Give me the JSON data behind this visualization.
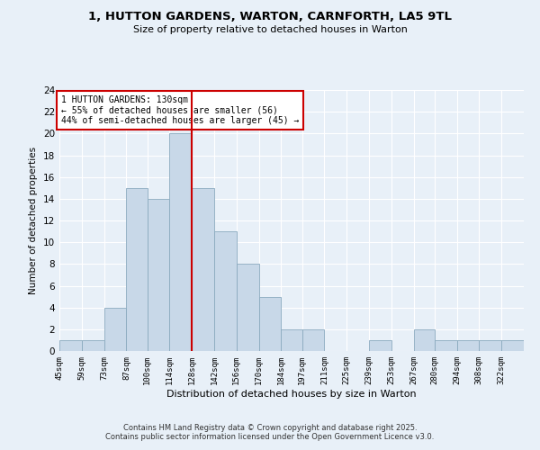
{
  "title_line1": "1, HUTTON GARDENS, WARTON, CARNFORTH, LA5 9TL",
  "title_line2": "Size of property relative to detached houses in Warton",
  "xlabel": "Distribution of detached houses by size in Warton",
  "ylabel": "Number of detached properties",
  "bin_labels": [
    "45sqm",
    "59sqm",
    "73sqm",
    "87sqm",
    "100sqm",
    "114sqm",
    "128sqm",
    "142sqm",
    "156sqm",
    "170sqm",
    "184sqm",
    "197sqm",
    "211sqm",
    "225sqm",
    "239sqm",
    "253sqm",
    "267sqm",
    "280sqm",
    "294sqm",
    "308sqm",
    "322sqm"
  ],
  "bin_edges": [
    45,
    59,
    73,
    87,
    100,
    114,
    128,
    142,
    156,
    170,
    184,
    197,
    211,
    225,
    239,
    253,
    267,
    280,
    294,
    308,
    322,
    336
  ],
  "bar_heights": [
    1,
    1,
    4,
    15,
    14,
    20,
    15,
    11,
    8,
    5,
    2,
    2,
    0,
    0,
    1,
    0,
    2,
    1,
    1,
    1,
    1
  ],
  "bar_color": "#c8d8e8",
  "bar_edge_color": "#8aaabf",
  "vline_x": 128,
  "annotation_text": "1 HUTTON GARDENS: 130sqm\n← 55% of detached houses are smaller (56)\n44% of semi-detached houses are larger (45) →",
  "annotation_box_color": "#ffffff",
  "annotation_box_edge": "#cc0000",
  "vline_color": "#cc0000",
  "ylim": [
    0,
    24
  ],
  "yticks": [
    0,
    2,
    4,
    6,
    8,
    10,
    12,
    14,
    16,
    18,
    20,
    22,
    24
  ],
  "footer_text": "Contains HM Land Registry data © Crown copyright and database right 2025.\nContains public sector information licensed under the Open Government Licence v3.0.",
  "background_color": "#e8f0f8",
  "grid_color": "#ffffff"
}
